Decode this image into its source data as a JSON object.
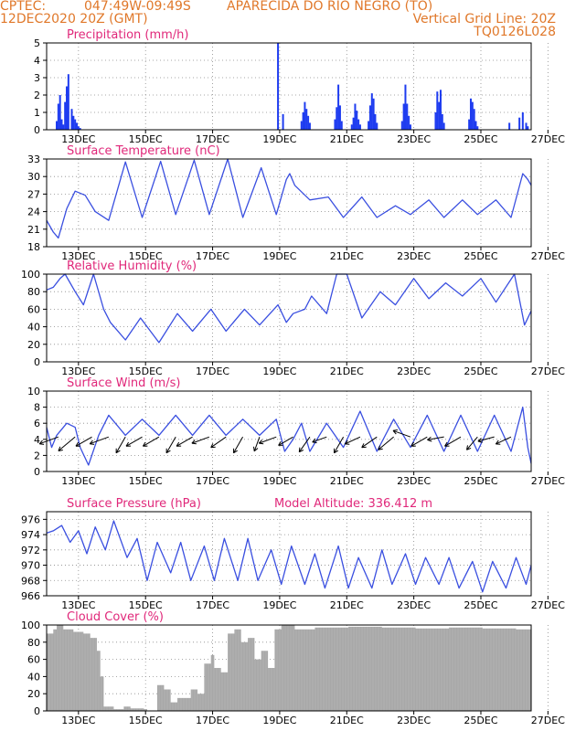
{
  "header": {
    "source": "CPTEC:",
    "coords": "047:49W-09:49S",
    "location": "APARECIDA DO RIO NEGRO (TO)",
    "datetime": "12DEC2020 20Z (GMT)",
    "grid_note": "Vertical Grid Line: 20Z",
    "code": "TQ0126L028"
  },
  "x_ticks": [
    "13DEC",
    "15DEC",
    "17DEC",
    "19DEC",
    "21DEC",
    "23DEC",
    "25DEC",
    "27DEC"
  ],
  "colors": {
    "header": "#e0782a",
    "title": "#e0287a",
    "line": "#3a4fe0",
    "bars": "#1e3cf0",
    "cloud": "#a8a8a8",
    "grid": "#8a8a8a",
    "arrows": "#000000"
  },
  "chart_data": [
    {
      "type": "bar",
      "title": "Precipitation (mm/h)",
      "ylim": [
        0,
        5
      ],
      "yticks": [
        0,
        1,
        2,
        3,
        4,
        5
      ],
      "grid": true,
      "x_unit": "days since 12DEC2020 00Z",
      "x": [
        0.3,
        0.35,
        0.4,
        0.45,
        0.5,
        0.55,
        0.6,
        0.65,
        0.75,
        0.8,
        0.85,
        0.9,
        0.95,
        1.0,
        6.9,
        7.05,
        7.6,
        7.65,
        7.7,
        7.75,
        7.8,
        7.85,
        8.6,
        8.65,
        8.7,
        8.75,
        8.8,
        9.1,
        9.15,
        9.2,
        9.25,
        9.3,
        9.35,
        9.6,
        9.65,
        9.7,
        9.75,
        9.8,
        9.85,
        10.6,
        10.65,
        10.7,
        10.75,
        10.8,
        10.85,
        11.6,
        11.65,
        11.7,
        11.75,
        11.8,
        11.85,
        12.6,
        12.65,
        12.7,
        12.75,
        12.8,
        12.85,
        13.8,
        14.1,
        14.2,
        14.3,
        14.35
      ],
      "values": [
        0.5,
        1.5,
        2.0,
        0.6,
        0.3,
        1.6,
        2.5,
        3.2,
        1.2,
        0.8,
        0.6,
        0.4,
        0.2,
        0.1,
        5.0,
        0.9,
        0.5,
        1.0,
        1.6,
        1.2,
        0.8,
        0.4,
        0.6,
        1.3,
        2.6,
        1.4,
        0.5,
        0.3,
        0.7,
        1.5,
        1.1,
        0.6,
        0.3,
        0.5,
        1.4,
        2.1,
        1.8,
        0.9,
        0.4,
        0.5,
        1.5,
        2.6,
        1.5,
        0.8,
        0.3,
        1.0,
        2.2,
        1.6,
        2.3,
        0.9,
        0.4,
        0.6,
        1.8,
        1.6,
        1.2,
        0.5,
        0.2,
        0.4,
        0.7,
        1.0,
        0.4,
        0.2
      ]
    },
    {
      "type": "line",
      "title": "Surface Temperature (nC)",
      "ylim": [
        18,
        33
      ],
      "yticks": [
        18,
        21,
        24,
        27,
        30,
        33
      ],
      "grid": true,
      "x_unit": "days since 12DEC2020 00Z",
      "x": [
        0.0,
        0.2,
        0.35,
        0.6,
        0.85,
        1.15,
        1.45,
        1.85,
        2.35,
        2.85,
        3.4,
        3.85,
        4.4,
        4.85,
        5.4,
        5.85,
        6.4,
        6.85,
        7.15,
        7.25,
        7.4,
        7.85,
        8.4,
        8.85,
        9.4,
        9.85,
        10.4,
        10.85,
        11.4,
        11.85,
        12.4,
        12.85,
        13.4,
        13.85,
        14.2,
        14.35,
        14.45
      ],
      "values": [
        22.5,
        20.5,
        19.5,
        24.5,
        27.5,
        26.8,
        24.0,
        22.5,
        32.5,
        23.0,
        32.6,
        23.5,
        32.8,
        23.5,
        33.0,
        23.0,
        31.5,
        23.5,
        29.5,
        30.5,
        28.5,
        26.0,
        26.5,
        23.0,
        26.5,
        23.0,
        25.0,
        23.5,
        26.0,
        23.0,
        26.0,
        23.5,
        26.0,
        23.0,
        30.5,
        29.5,
        28.5
      ]
    },
    {
      "type": "line",
      "title": "Relative Humidity (%)",
      "ylim": [
        0,
        100
      ],
      "yticks": [
        0,
        20,
        40,
        60,
        80,
        100
      ],
      "grid": true,
      "x_unit": "days since 12DEC2020 00Z",
      "x": [
        0.0,
        0.2,
        0.4,
        0.55,
        0.85,
        1.1,
        1.4,
        1.7,
        1.9,
        2.35,
        2.8,
        3.35,
        3.9,
        4.35,
        4.9,
        5.35,
        5.9,
        6.35,
        6.9,
        7.15,
        7.35,
        7.7,
        7.9,
        8.35,
        8.65,
        8.95,
        9.4,
        9.95,
        10.4,
        10.95,
        11.4,
        11.9,
        12.4,
        12.95,
        13.4,
        13.95,
        14.25,
        14.45
      ],
      "values": [
        82,
        85,
        95,
        100,
        80,
        65,
        100,
        60,
        45,
        25,
        50,
        22,
        55,
        35,
        60,
        35,
        60,
        42,
        65,
        45,
        55,
        60,
        75,
        55,
        100,
        100,
        50,
        80,
        65,
        95,
        72,
        90,
        75,
        95,
        68,
        100,
        42,
        58
      ]
    },
    {
      "type": "line",
      "title": "Surface Wind (m/s)",
      "ylim": [
        0,
        10
      ],
      "yticks": [
        0,
        2,
        4,
        6,
        8,
        10
      ],
      "grid": true,
      "x_unit": "days since 12DEC2020 00Z",
      "x": [
        0.0,
        0.15,
        0.3,
        0.6,
        0.85,
        1.0,
        1.25,
        1.55,
        1.85,
        2.35,
        2.85,
        3.35,
        3.85,
        4.35,
        4.85,
        5.35,
        5.85,
        6.35,
        6.85,
        7.1,
        7.35,
        7.6,
        7.85,
        8.35,
        8.85,
        9.35,
        9.85,
        10.35,
        10.85,
        11.35,
        11.85,
        12.35,
        12.85,
        13.35,
        13.85,
        14.2,
        14.35,
        14.45
      ],
      "values": [
        5.5,
        3.0,
        4.5,
        6.0,
        5.5,
        3.0,
        0.8,
        4.5,
        7.0,
        4.5,
        6.5,
        4.5,
        7.0,
        4.5,
        7.0,
        4.5,
        6.5,
        4.5,
        6.5,
        2.5,
        4.0,
        6.0,
        2.5,
        6.0,
        3.0,
        7.5,
        2.5,
        6.5,
        3.0,
        7.0,
        2.5,
        7.0,
        2.5,
        7.0,
        2.5,
        8.0,
        3.0,
        1.0
      ],
      "arrow_x": [
        0.35,
        0.85,
        1.35,
        1.85,
        2.35,
        2.85,
        3.35,
        3.85,
        4.35,
        4.85,
        5.35,
        5.85,
        6.35,
        6.85,
        7.35,
        7.85,
        8.35,
        8.85,
        9.35,
        9.85,
        10.35,
        10.85,
        11.35,
        11.85,
        12.35,
        12.85,
        13.35,
        13.85
      ],
      "arrow_dir_deg": [
        200,
        220,
        210,
        200,
        240,
        210,
        210,
        240,
        210,
        200,
        215,
        240,
        250,
        200,
        210,
        235,
        200,
        240,
        205,
        215,
        220,
        160,
        210,
        190,
        210,
        230,
        195,
        205
      ],
      "arrow_speed": [
        5.0,
        5.5,
        4.5,
        5.0,
        4.5,
        4.5,
        4.5,
        4.5,
        4.5,
        4.5,
        4.5,
        4.5,
        3.5,
        4.5,
        4.0,
        4.5,
        3.5,
        4.5,
        4.0,
        4.5,
        5.0,
        4.5,
        4.5,
        4.0,
        4.5,
        4.0,
        4.0,
        4.0
      ]
    },
    {
      "type": "line",
      "title": "Surface Pressure (hPa)",
      "annotation": "Model Altitude: 336.412 m",
      "ylim": [
        966,
        977
      ],
      "yticks": [
        966,
        968,
        970,
        972,
        974,
        976
      ],
      "grid": true,
      "x_unit": "days since 12DEC2020 00Z",
      "x": [
        0.0,
        0.2,
        0.45,
        0.7,
        0.95,
        1.2,
        1.45,
        1.75,
        2.0,
        2.4,
        2.7,
        3.0,
        3.3,
        3.7,
        4.0,
        4.3,
        4.7,
        5.0,
        5.3,
        5.7,
        6.0,
        6.3,
        6.7,
        7.0,
        7.3,
        7.7,
        8.0,
        8.3,
        8.7,
        9.0,
        9.3,
        9.7,
        10.0,
        10.3,
        10.7,
        11.0,
        11.3,
        11.7,
        12.0,
        12.3,
        12.7,
        13.0,
        13.3,
        13.7,
        14.0,
        14.3,
        14.45
      ],
      "values": [
        974.2,
        974.5,
        975.2,
        973.0,
        974.5,
        971.5,
        975.0,
        972.0,
        975.8,
        971.0,
        973.5,
        968.0,
        973.0,
        969.0,
        973.0,
        968.0,
        972.5,
        968.0,
        973.5,
        968.0,
        973.5,
        968.0,
        972.0,
        967.5,
        972.5,
        967.5,
        971.5,
        967.0,
        972.5,
        967.0,
        971.0,
        967.0,
        972.0,
        967.5,
        971.5,
        967.5,
        971.0,
        967.5,
        971.0,
        967.0,
        970.5,
        966.5,
        970.5,
        967.0,
        971.0,
        967.5,
        970.0
      ]
    },
    {
      "type": "area",
      "title": "Cloud Cover (%)",
      "ylim": [
        0,
        100
      ],
      "yticks": [
        0,
        20,
        40,
        60,
        80,
        100
      ],
      "grid": true,
      "x_unit": "days since 12DEC2020 00Z",
      "x": [
        0.0,
        0.2,
        0.3,
        0.5,
        0.8,
        1.1,
        1.3,
        1.5,
        1.6,
        1.7,
        2.0,
        2.3,
        2.5,
        2.9,
        3.0,
        3.3,
        3.5,
        3.7,
        3.9,
        4.1,
        4.3,
        4.5,
        4.7,
        4.9,
        5.0,
        5.2,
        5.4,
        5.6,
        5.8,
        6.0,
        6.2,
        6.4,
        6.6,
        6.8,
        7.0,
        7.2,
        7.4,
        7.6,
        8.0,
        9.0,
        10.0,
        11.0,
        12.0,
        13.0,
        14.0,
        14.45
      ],
      "values": [
        90,
        95,
        100,
        95,
        92,
        90,
        85,
        70,
        40,
        5,
        2,
        5,
        3,
        2,
        0,
        30,
        25,
        10,
        15,
        15,
        25,
        20,
        55,
        65,
        50,
        45,
        90,
        95,
        80,
        85,
        60,
        70,
        50,
        95,
        100,
        100,
        95,
        95,
        97,
        98,
        97,
        96,
        97,
        96,
        95,
        95
      ]
    }
  ]
}
